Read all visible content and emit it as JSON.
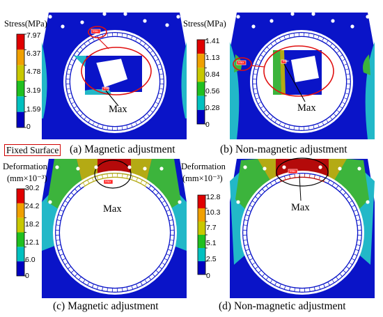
{
  "panels": [
    {
      "caption": "(a) Magnetic adjustment",
      "scale_title": "Stress(MPa)",
      "ticks": [
        "7.97",
        "6.37",
        "4.78",
        "3.19",
        "1.59",
        "0"
      ],
      "max_label": "Max",
      "tag": "Max"
    },
    {
      "caption": "(b) Non-magnetic adjustment",
      "scale_title": "Stress(MPa)",
      "ticks": [
        "1.41",
        "1.13",
        "0.84",
        "0.56",
        "0.28",
        "0"
      ],
      "max_label": "Max",
      "tag": "Max"
    },
    {
      "caption": "(c) Magnetic adjustment",
      "scale_title": [
        "Deformation",
        "(mm×10⁻³)"
      ],
      "ticks": [
        "30.2",
        "24.2",
        "18.2",
        "12.1",
        "6.0",
        "0"
      ],
      "max_label": "Max",
      "tag": "Max"
    },
    {
      "caption": "(d) Non-magnetic adjustment",
      "scale_title": [
        "Deformation",
        "(mm×10⁻³)"
      ],
      "ticks": [
        "12.8",
        "10.3",
        "7.7",
        "5.1",
        "2.5",
        "0"
      ],
      "max_label": "Max",
      "tag": "Max"
    }
  ],
  "fixed_surface_label": "Fixed Surface",
  "legend_colors": [
    "#e00000",
    "#f0a000",
    "#c8c800",
    "#20c020",
    "#00c0c0",
    "#0000c0"
  ],
  "fem_colors": {
    "blue": "#0a14c8",
    "cyan": "#22b8c8",
    "green": "#3cb43c",
    "yellow": "#b4aa14",
    "red": "#b40a0a",
    "annotation": "#e01010"
  }
}
